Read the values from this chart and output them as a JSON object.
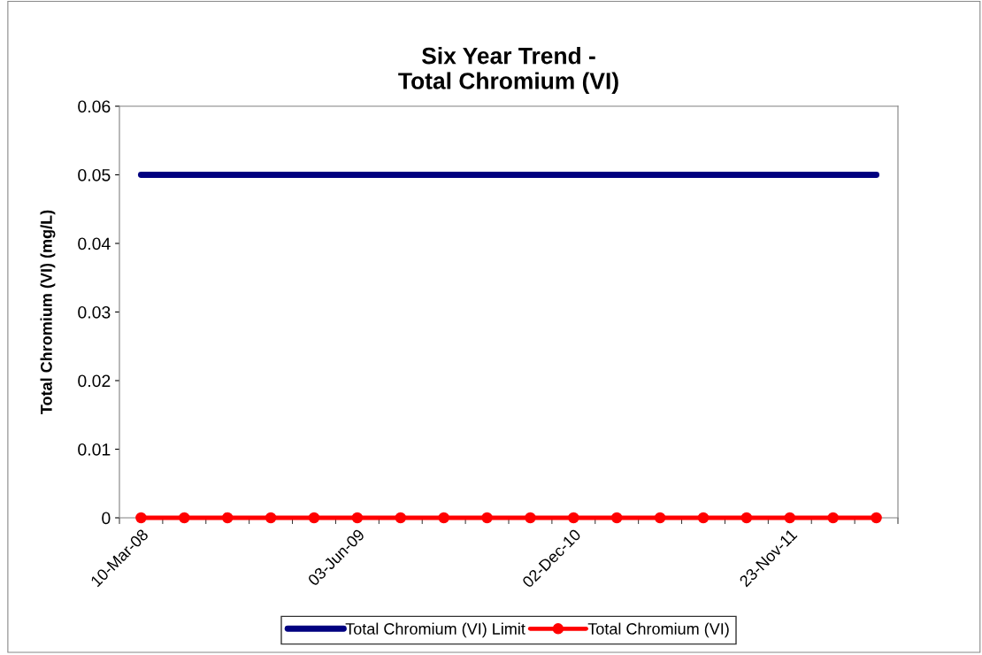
{
  "chart_data": {
    "type": "line",
    "title": "Six Year Trend -\nTotal Chromium (VI)",
    "ylabel": "Total Chromium (VI) (mg/L)",
    "categories": [
      "10-Mar-08",
      null,
      null,
      null,
      null,
      "03-Jun-09",
      null,
      null,
      null,
      null,
      "02-Dec-10",
      null,
      null,
      null,
      null,
      "23-Nov-11",
      null,
      null
    ],
    "series": [
      {
        "name": "Total Chromium (VI) Limit",
        "color": "#000080",
        "marker": "none",
        "values": [
          0.05,
          0.05,
          0.05,
          0.05,
          0.05,
          0.05,
          0.05,
          0.05,
          0.05,
          0.05,
          0.05,
          0.05,
          0.05,
          0.05,
          0.05,
          0.05,
          0.05,
          0.05
        ]
      },
      {
        "name": "Total Chromium (VI)",
        "color": "#ff0000",
        "marker": "circle",
        "values": [
          0,
          0,
          0,
          0,
          0,
          0,
          0,
          0,
          0,
          0,
          0,
          0,
          0,
          0,
          0,
          0,
          0,
          0
        ]
      }
    ],
    "ylim": [
      0,
      0.06
    ],
    "yticks": [
      {
        "value": 0,
        "label": "0"
      },
      0.01,
      0.02,
      0.03,
      0.04,
      0.05,
      0.06
    ],
    "grid": false,
    "legend": "bottom",
    "line_style": "solid"
  }
}
